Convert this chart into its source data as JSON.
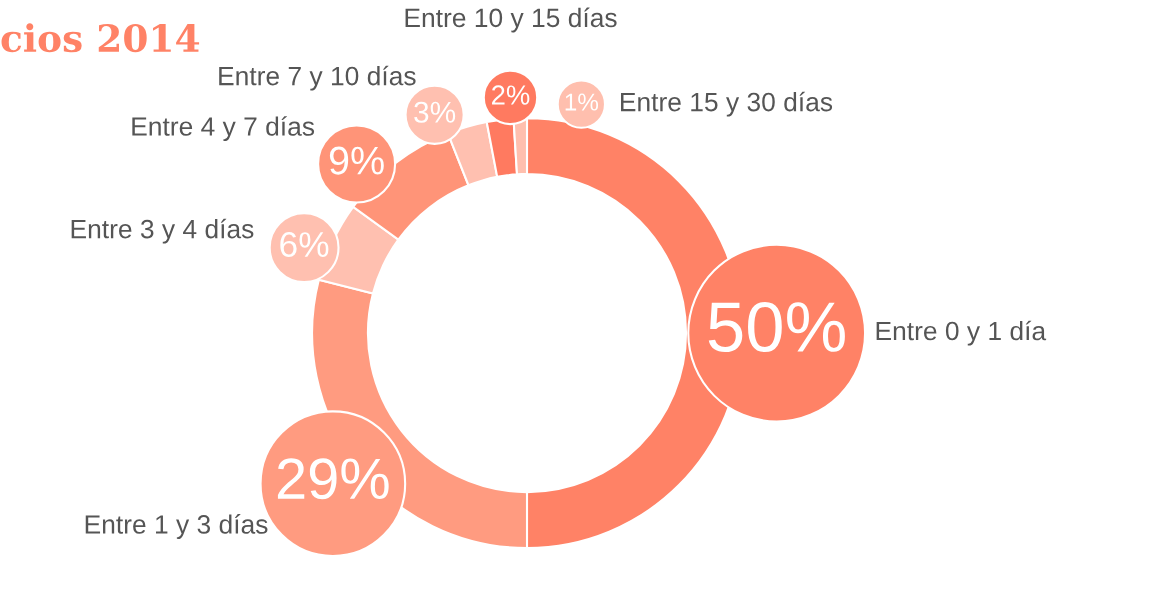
{
  "chart_data": {
    "type": "donut",
    "title": "cios 2014",
    "categories": [
      "Entre 0 y 1 día",
      "Entre 1 y 3 días",
      "Entre 3 y 4 días",
      "Entre 4 y 7 días",
      "Entre 7 y 10 días",
      "Entre 10 y 15 días",
      "Entre 15 y 30 días"
    ],
    "values": [
      50,
      29,
      6,
      9,
      3,
      2,
      1
    ],
    "value_labels": [
      "50%",
      "29%",
      "6%",
      "9%",
      "3%",
      "2%",
      "1%"
    ],
    "colors": [
      "#ff8266",
      "#ff9b80",
      "#ffc0b0",
      "#ff9478",
      "#ffc0b0",
      "#ff7a60",
      "#ffbfae"
    ]
  }
}
